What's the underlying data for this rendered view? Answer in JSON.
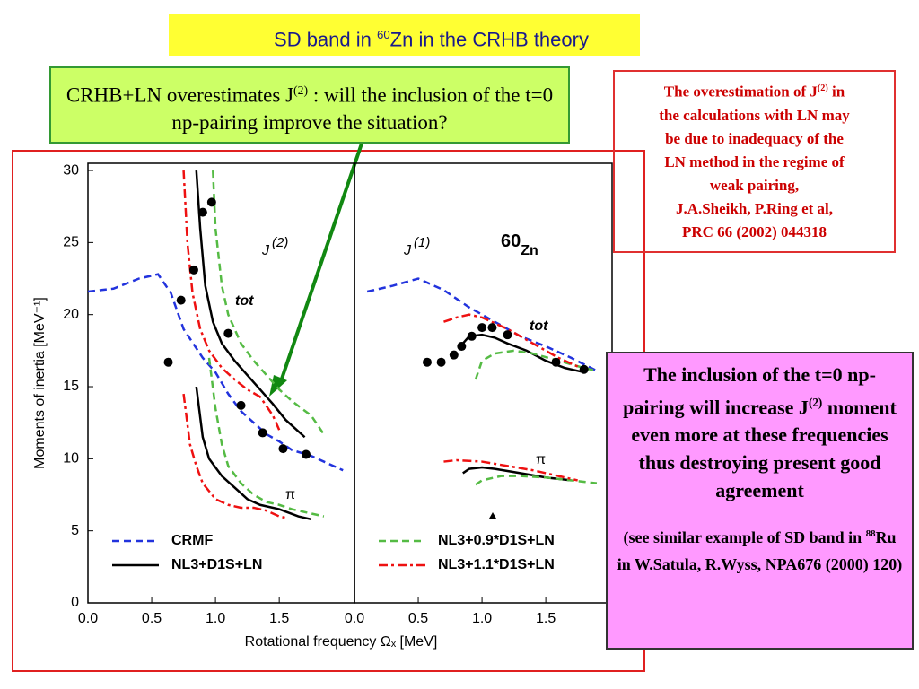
{
  "title": {
    "text1": "SD band in ",
    "sup": "60",
    "text2": "Zn in the CRHB theory"
  },
  "question_box": {
    "text1": "CRHB+LN overestimates J",
    "sup": "(2)",
    "text2": " : will the inclusion of the t=0 np-pairing improve the situation?"
  },
  "note_box": {
    "line1": "The overestimation of J",
    "sup": "(2)",
    "line1_end": "  in",
    "lines": [
      "the calculations with LN may",
      "be due to inadequacy of the",
      "LN method in the regime of",
      "weak pairing,",
      "J.A.Sheikh, P.Ring et al,",
      "PRC 66 (2002)  044318"
    ]
  },
  "conclusion_box": {
    "text1": "The inclusion of  the t=0 np-pairing will increase J",
    "sup": "(2)",
    "text2": " moment even more at these frequencies thus destroying present good agreement",
    "ref1": "(see similar example of SD band in ",
    "ref_sup": "88",
    "ref2": "Ru in W.Satula, R.Wyss, NPA676 (2000) 120)"
  },
  "chart_data": [
    {
      "type": "line",
      "ylabel": "Moments  of  inertia  [MeV⁻¹]",
      "xlabel": "Rotational  frequency  Ωₓ  [MeV]",
      "xlim": [
        0,
        2.09
      ],
      "ylim": [
        0,
        30.5
      ],
      "xticks": [
        {
          "value": 0,
          "label": "0.0"
        },
        {
          "value": 0.5,
          "label": "0.5"
        },
        {
          "value": 1,
          "label": "1.0"
        },
        {
          "value": 1.5,
          "label": "1.5"
        }
      ],
      "yticks": [
        0,
        5,
        10,
        15,
        20,
        25,
        30
      ],
      "annotations": [
        {
          "text": "J",
          "sup": "(2)"
        },
        {
          "text": "tot"
        },
        {
          "text": "π"
        }
      ],
      "series": [
        {
          "name": "CRMF",
          "color": "#2233dd",
          "dash": "dashed",
          "x": [
            0,
            0.2,
            0.4,
            0.55,
            0.65,
            0.75,
            0.9,
            1.0,
            1.1,
            1.2,
            1.3,
            1.4,
            1.5,
            1.6,
            1.75,
            2.0
          ],
          "values": [
            21.6,
            21.8,
            22.5,
            22.8,
            21.5,
            19,
            17,
            16,
            14.5,
            13.3,
            12.5,
            11.7,
            11.2,
            10.6,
            10.2,
            9.2
          ]
        },
        {
          "name": "NL3+D1S+LN",
          "color": "#000000",
          "dash": "solid",
          "x": [
            0.85,
            0.88,
            0.92,
            0.98,
            1.05,
            1.15,
            1.25,
            1.35,
            1.45,
            1.55,
            1.7
          ],
          "values": [
            30,
            26,
            22,
            19.5,
            18,
            16.8,
            15.8,
            14.8,
            13.8,
            12.7,
            11.5
          ]
        },
        {
          "color": "#000000",
          "dash": "solid",
          "x": [
            0.85,
            0.9,
            0.95,
            1.05,
            1.15,
            1.25,
            1.35,
            1.5,
            1.65,
            1.75
          ],
          "values": [
            15,
            11.5,
            10,
            8.8,
            8,
            7.2,
            6.8,
            6.5,
            6,
            5.8
          ]
        },
        {
          "color": "#55bb44",
          "dash": "dashed",
          "x": [
            0.98,
            1.0,
            1.05,
            1.1,
            1.2,
            1.3,
            1.4,
            1.5,
            1.6,
            1.75,
            1.85
          ],
          "values": [
            30,
            26,
            22,
            20,
            18,
            16.8,
            15.8,
            14.8,
            14,
            13,
            11.7
          ]
        },
        {
          "color": "#55bb44",
          "dash": "dashed",
          "x": [
            0.95,
            1.0,
            1.05,
            1.1,
            1.2,
            1.3,
            1.4,
            1.5,
            1.6,
            1.75,
            1.85
          ],
          "values": [
            17,
            13.5,
            11,
            9.5,
            8.3,
            7.5,
            7,
            6.8,
            6.5,
            6.2,
            6
          ]
        },
        {
          "color": "#ee1111",
          "dash": "dashdot",
          "x": [
            0.75,
            0.78,
            0.82,
            0.88,
            0.95,
            1.05,
            1.15,
            1.25,
            1.35,
            1.45,
            1.5
          ],
          "values": [
            30,
            25,
            21.5,
            19,
            17.5,
            16.3,
            15.5,
            14.8,
            14.3,
            13,
            12
          ]
        },
        {
          "color": "#ee1111",
          "dash": "dashdot",
          "x": [
            0.75,
            0.8,
            0.85,
            0.9,
            1.0,
            1.1,
            1.2,
            1.3,
            1.4,
            1.5,
            1.55
          ],
          "values": [
            14.5,
            11,
            9.5,
            8.3,
            7.2,
            6.8,
            6.6,
            6.6,
            6.4,
            6,
            5.9
          ]
        },
        {
          "color": "#000000",
          "marker": "dot",
          "x": [
            0.63,
            0.73,
            0.83,
            0.9,
            0.97,
            1.1,
            1.2,
            1.37,
            1.53,
            1.71
          ],
          "values": [
            16.7,
            21,
            23.1,
            27.1,
            27.8,
            18.7,
            13.7,
            11.8,
            10.7,
            10.3
          ]
        }
      ]
    },
    {
      "type": "line",
      "xlim": [
        0,
        2.02
      ],
      "ylim": [
        0,
        30.5
      ],
      "xticks": [
        {
          "value": 0,
          "label": "0.0"
        },
        {
          "value": 0.5,
          "label": "0.5"
        },
        {
          "value": 1,
          "label": "1.0"
        },
        {
          "value": 1.5,
          "label": "1.5"
        },
        2
      ],
      "annotations": [
        {
          "text": "J",
          "sup": "(1)"
        },
        {
          "pre": "60",
          "text": "Zn"
        },
        {
          "text": "tot"
        },
        {
          "text": "π"
        }
      ],
      "series": [
        {
          "color": "#2233dd",
          "dash": "dashed",
          "x": [
            0.1,
            0.3,
            0.5,
            0.7,
            0.9,
            1.1,
            1.3,
            1.5,
            1.7,
            1.9
          ],
          "values": [
            21.6,
            22,
            22.5,
            21.7,
            20.5,
            19.5,
            18.5,
            17.8,
            17,
            16.1
          ]
        },
        {
          "color": "#000000",
          "dash": "solid",
          "x": [
            0.85,
            0.9,
            1.0,
            1.1,
            1.2,
            1.35,
            1.5,
            1.65,
            1.8
          ],
          "values": [
            18,
            18.5,
            18.6,
            18.4,
            18,
            17.5,
            16.8,
            16.3,
            16
          ]
        },
        {
          "color": "#000000",
          "dash": "solid",
          "x": [
            0.85,
            0.9,
            1.0,
            1.1,
            1.3,
            1.5,
            1.7
          ],
          "values": [
            9,
            9.3,
            9.4,
            9.3,
            9,
            8.7,
            8.5
          ]
        },
        {
          "name": "NL3+0.9*D1S+LN",
          "color": "#55bb44",
          "dash": "dashed",
          "x": [
            0.95,
            1.0,
            1.1,
            1.25,
            1.4,
            1.6,
            1.8,
            1.9
          ],
          "values": [
            15.5,
            16.8,
            17.3,
            17.5,
            17.3,
            16.8,
            16.3,
            16.1
          ]
        },
        {
          "color": "#55bb44",
          "dash": "dashed",
          "x": [
            0.95,
            1.0,
            1.15,
            1.3,
            1.5,
            1.7,
            1.9
          ],
          "values": [
            8.2,
            8.5,
            8.8,
            8.8,
            8.7,
            8.5,
            8.3
          ]
        },
        {
          "name": "NL3+1.1*D1S+LN",
          "color": "#ee1111",
          "dash": "dashdot",
          "x": [
            0.7,
            0.8,
            0.9,
            1.0,
            1.2,
            1.4,
            1.6,
            1.8
          ],
          "values": [
            19.5,
            19.8,
            20,
            19.8,
            19,
            18,
            17,
            16.2
          ]
        },
        {
          "color": "#ee1111",
          "dash": "dashdot",
          "x": [
            0.7,
            0.8,
            1.0,
            1.2,
            1.4,
            1.6,
            1.75
          ],
          "values": [
            9.8,
            9.9,
            9.8,
            9.5,
            9.2,
            8.8,
            8.5
          ]
        },
        {
          "color": "#000000",
          "marker": "dot",
          "x": [
            0.57,
            0.68,
            0.78,
            0.84,
            0.92,
            1.0,
            1.08,
            1.2,
            1.58,
            1.8
          ],
          "values": [
            16.7,
            16.7,
            17.2,
            17.8,
            18.5,
            19.1,
            19.1,
            18.6,
            16.7,
            16.2
          ]
        }
      ]
    }
  ]
}
